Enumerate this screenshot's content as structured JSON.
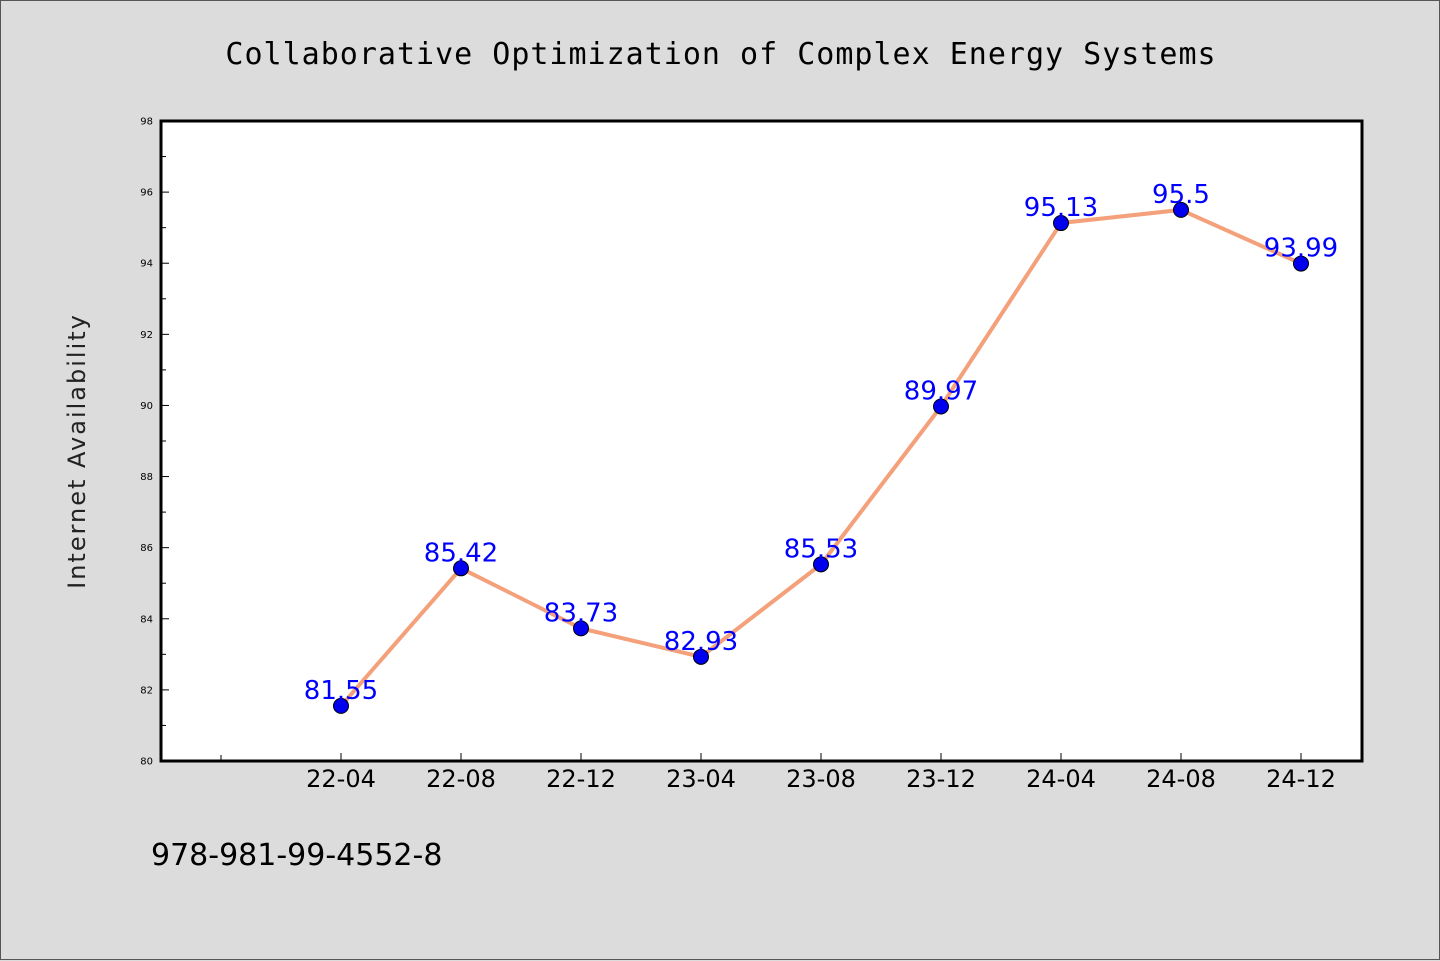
{
  "chart_data": {
    "type": "line",
    "title": "Collaborative Optimization of Complex Energy Systems",
    "xlabel": "",
    "ylabel": "Internet Availability",
    "categories": [
      "22-04",
      "22-08",
      "22-12",
      "23-04",
      "23-08",
      "23-12",
      "24-04",
      "24-08",
      "24-12"
    ],
    "series": [
      {
        "values": [
          81.55,
          85.42,
          83.73,
          82.93,
          85.53,
          89.97,
          95.13,
          95.5,
          93.99
        ],
        "data_labels": [
          "81.55",
          "85.42",
          "83.73",
          "82.93",
          "85.53",
          "89.97",
          "95.13",
          "95.5",
          "93.99"
        ],
        "line_color": "#f4a07a",
        "marker_color": "#0000ee"
      }
    ],
    "ylim": [
      80,
      98
    ],
    "yticks": [
      80,
      82,
      84,
      86,
      88,
      90,
      92,
      94,
      96,
      98
    ],
    "grid": false,
    "legend": "none",
    "label_color": "#0000ff"
  },
  "footer": {
    "isbn": "978-981-99-4552-8"
  },
  "colors": {
    "background": "#dcdcdc",
    "plot_area": "#ffffff"
  }
}
